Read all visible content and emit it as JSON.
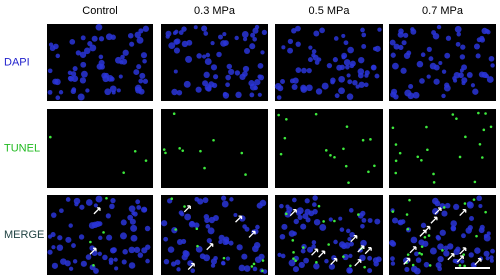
{
  "columns": [
    "Control",
    "0.3 MPa",
    "0.5 MPa",
    "0.7 MPa"
  ],
  "rows": [
    {
      "label": "DAPI",
      "color": "#2222cc"
    },
    {
      "label": "TUNEL",
      "color": "#22bb22"
    },
    {
      "label": "MERGE",
      "color": "#224444"
    }
  ]
}
